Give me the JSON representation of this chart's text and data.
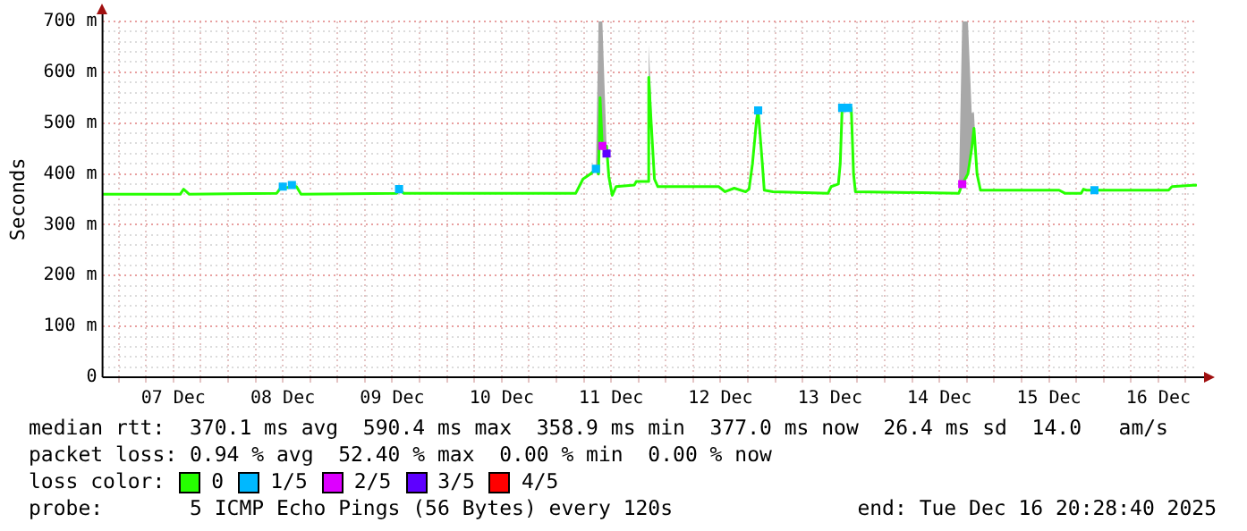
{
  "chart_data": {
    "type": "line",
    "ylabel": "Seconds",
    "legend": "bottom",
    "legend_title": "loss color:",
    "grid": true,
    "xlim": [
      "2025-12-06T20:28",
      "2025-12-16T20:28"
    ],
    "xticks": [
      {
        "value": "2025-12-07T00:00",
        "label": null
      },
      {
        "value": "2025-12-07T06:00",
        "label": null
      },
      {
        "value": "2025-12-07T12:00",
        "label": "07 Dec"
      },
      {
        "value": "2025-12-07T18:00",
        "label": null
      },
      {
        "value": "2025-12-08T00:00",
        "label": null
      },
      {
        "value": "2025-12-08T06:00",
        "label": null
      },
      {
        "value": "2025-12-08T12:00",
        "label": "08 Dec"
      },
      {
        "value": "2025-12-08T18:00",
        "label": null
      },
      {
        "value": "2025-12-09T00:00",
        "label": null
      },
      {
        "value": "2025-12-09T06:00",
        "label": null
      },
      {
        "value": "2025-12-09T12:00",
        "label": "09 Dec"
      },
      {
        "value": "2025-12-09T18:00",
        "label": null
      },
      {
        "value": "2025-12-10T00:00",
        "label": null
      },
      {
        "value": "2025-12-10T06:00",
        "label": null
      },
      {
        "value": "2025-12-10T12:00",
        "label": "10 Dec"
      },
      {
        "value": "2025-12-10T18:00",
        "label": null
      },
      {
        "value": "2025-12-11T00:00",
        "label": null
      },
      {
        "value": "2025-12-11T06:00",
        "label": null
      },
      {
        "value": "2025-12-11T12:00",
        "label": "11 Dec"
      },
      {
        "value": "2025-12-11T18:00",
        "label": null
      },
      {
        "value": "2025-12-12T00:00",
        "label": null
      },
      {
        "value": "2025-12-12T06:00",
        "label": null
      },
      {
        "value": "2025-12-12T12:00",
        "label": "12 Dec"
      },
      {
        "value": "2025-12-12T18:00",
        "label": null
      },
      {
        "value": "2025-12-13T00:00",
        "label": null
      },
      {
        "value": "2025-12-13T06:00",
        "label": null
      },
      {
        "value": "2025-12-13T12:00",
        "label": "13 Dec"
      },
      {
        "value": "2025-12-13T18:00",
        "label": null
      },
      {
        "value": "2025-12-14T00:00",
        "label": null
      },
      {
        "value": "2025-12-14T06:00",
        "label": null
      },
      {
        "value": "2025-12-14T12:00",
        "label": "14 Dec"
      },
      {
        "value": "2025-12-14T18:00",
        "label": null
      },
      {
        "value": "2025-12-15T00:00",
        "label": null
      },
      {
        "value": "2025-12-15T06:00",
        "label": null
      },
      {
        "value": "2025-12-15T12:00",
        "label": "15 Dec"
      },
      {
        "value": "2025-12-15T18:00",
        "label": null
      },
      {
        "value": "2025-12-16T00:00",
        "label": null
      },
      {
        "value": "2025-12-16T06:00",
        "label": null
      },
      {
        "value": "2025-12-16T12:00",
        "label": "16 Dec"
      },
      {
        "value": "2025-12-16T18:00",
        "label": null
      }
    ],
    "ylim": [
      0,
      700
    ],
    "yticks": [
      0,
      {
        "value": 20,
        "label": null
      },
      {
        "value": 40,
        "label": null
      },
      {
        "value": 60,
        "label": null
      },
      {
        "value": 80,
        "label": null
      },
      {
        "value": 100,
        "label": "100 m"
      },
      {
        "value": 120,
        "label": null
      },
      {
        "value": 140,
        "label": null
      },
      {
        "value": 160,
        "label": null
      },
      {
        "value": 180,
        "label": null
      },
      {
        "value": 200,
        "label": "200 m"
      },
      {
        "value": 220,
        "label": null
      },
      {
        "value": 240,
        "label": null
      },
      {
        "value": 260,
        "label": null
      },
      {
        "value": 280,
        "label": null
      },
      {
        "value": 300,
        "label": "300 m"
      },
      {
        "value": 320,
        "label": null
      },
      {
        "value": 340,
        "label": null
      },
      {
        "value": 360,
        "label": null
      },
      {
        "value": 380,
        "label": null
      },
      {
        "value": 400,
        "label": "400 m"
      },
      {
        "value": 420,
        "label": null
      },
      {
        "value": 440,
        "label": null
      },
      {
        "value": 460,
        "label": null
      },
      {
        "value": 480,
        "label": null
      },
      {
        "value": 500,
        "label": "500 m"
      },
      {
        "value": 520,
        "label": null
      },
      {
        "value": 540,
        "label": null
      },
      {
        "value": 560,
        "label": null
      },
      {
        "value": 580,
        "label": null
      },
      {
        "value": 600,
        "label": "600 m"
      },
      {
        "value": 620,
        "label": null
      },
      {
        "value": 640,
        "label": null
      },
      {
        "value": 660,
        "label": null
      },
      {
        "value": 680,
        "label": null
      },
      {
        "value": 700,
        "label": "700 m"
      }
    ],
    "series": [
      {
        "name": "0",
        "color": "#26ff00",
        "marker": "none",
        "x": [
          "2025-12-06T20:28",
          "2025-12-07T13:30",
          "2025-12-07T14:15",
          "2025-12-07T15:30",
          "2025-12-08T10:40",
          "2025-12-08T11:30",
          "2025-12-08T15:00",
          "2025-12-08T16:00",
          "2025-12-09T13:00",
          "2025-12-09T13:30",
          "2025-12-09T14:30",
          "2025-12-11T04:15",
          "2025-12-11T05:50",
          "2025-12-11T07:30",
          "2025-12-11T08:40",
          "2025-12-11T09:15",
          "2025-12-11T09:35",
          "2025-12-11T10:05",
          "2025-12-11T11:00",
          "2025-12-11T11:30",
          "2025-12-11T12:15",
          "2025-12-11T13:05",
          "2025-12-11T17:05",
          "2025-12-11T17:30",
          "2025-12-11T20:05",
          "2025-12-11T20:15",
          "2025-12-11T20:40",
          "2025-12-11T21:30",
          "2025-12-11T22:15",
          "2025-12-12T11:35",
          "2025-12-12T13:00",
          "2025-12-12T15:00",
          "2025-12-12T17:30",
          "2025-12-12T18:15",
          "2025-12-12T19:00",
          "2025-12-12T19:50",
          "2025-12-12T20:15",
          "2025-12-12T21:10",
          "2025-12-12T21:35",
          "2025-12-12T23:30",
          "2025-12-13T11:35",
          "2025-12-13T12:15",
          "2025-12-13T13:50",
          "2025-12-13T14:15",
          "2025-12-13T14:40",
          "2025-12-13T16:40",
          "2025-12-13T17:10",
          "2025-12-13T17:35",
          "2025-12-14T16:15",
          "2025-12-14T17:00",
          "2025-12-14T18:15",
          "2025-12-14T19:05",
          "2025-12-14T19:35",
          "2025-12-14T20:15",
          "2025-12-14T21:00",
          "2025-12-15T14:15",
          "2025-12-15T15:30",
          "2025-12-15T19:05",
          "2025-12-15T19:35",
          "2025-12-15T20:15",
          "2025-12-16T14:15",
          "2025-12-16T15:00",
          "2025-12-16T20:15",
          "2025-12-16T20:28"
        ],
        "values": [
          360,
          360,
          370,
          360,
          362,
          372,
          375,
          360,
          362,
          370,
          362,
          362,
          390,
          400,
          410,
          400,
          550,
          450,
          455,
          395,
          358,
          375,
          378,
          385,
          385,
          590,
          520,
          390,
          375,
          375,
          365,
          372,
          365,
          370,
          420,
          500,
          525,
          420,
          368,
          365,
          362,
          375,
          380,
          420,
          530,
          530,
          400,
          365,
          362,
          380,
          400,
          450,
          490,
          400,
          368,
          368,
          362,
          362,
          370,
          368,
          368,
          375,
          378,
          377
        ],
        "lower": [
          360,
          360,
          370,
          360,
          362,
          372,
          375,
          360,
          362,
          370,
          362,
          362,
          390,
          400,
          410,
          400,
          550,
          450,
          455,
          395,
          358,
          375,
          378,
          385,
          385,
          590,
          520,
          390,
          375,
          375,
          365,
          372,
          365,
          370,
          420,
          500,
          525,
          420,
          368,
          365,
          362,
          375,
          380,
          420,
          530,
          530,
          400,
          365,
          362,
          380,
          400,
          450,
          490,
          400,
          368,
          368,
          362,
          362,
          370,
          368,
          368,
          375,
          378,
          377
        ],
        "upper": [
          360,
          360,
          370,
          360,
          362,
          372,
          375,
          360,
          362,
          370,
          362,
          362,
          390,
          400,
          410,
          700,
          700,
          700,
          455,
          395,
          358,
          375,
          378,
          385,
          385,
          654,
          570,
          390,
          375,
          375,
          365,
          372,
          365,
          370,
          420,
          530,
          530,
          420,
          368,
          365,
          362,
          375,
          380,
          420,
          535,
          535,
          400,
          365,
          362,
          700,
          700,
          520,
          520,
          400,
          368,
          368,
          362,
          362,
          370,
          368,
          368,
          375,
          378,
          377
        ]
      },
      {
        "name": "1/5",
        "type": "scatter",
        "color": "#00b8ff",
        "marker": "square",
        "x": [
          "2025-12-08T12:00",
          "2025-12-08T14:00",
          "2025-12-09T13:30",
          "2025-12-11T08:40",
          "2025-12-12T20:15",
          "2025-12-13T14:40",
          "2025-12-13T16:00",
          "2025-12-15T22:00"
        ],
        "values": [
          375,
          378,
          370,
          410,
          525,
          530,
          530,
          368
        ]
      },
      {
        "name": "2/5",
        "type": "scatter",
        "color": "#dd00ff",
        "marker": "square",
        "x": [
          "2025-12-11T10:05",
          "2025-12-14T17:00"
        ],
        "values": [
          455,
          380
        ]
      },
      {
        "name": "3/5",
        "type": "scatter",
        "color": "#5e00ff",
        "marker": "square",
        "x": [
          "2025-12-11T11:00"
        ],
        "values": [
          440
        ]
      },
      {
        "name": "4/5",
        "type": "scatter",
        "color": "#ff0000",
        "marker": "square"
      }
    ],
    "annotations": [
      "median rtt:  370.1 ms avg  590.4 ms max  358.9 ms min  377.0 ms now  26.4 ms sd  14.0   am/s",
      "packet loss: 0.94 % avg  52.40 % max  0.00 % min  0.00 % now",
      "probe:       5 ICMP Echo Pings (56 Bytes) every 120s",
      "end: Tue Dec 16 20:28:40 2025"
    ]
  }
}
